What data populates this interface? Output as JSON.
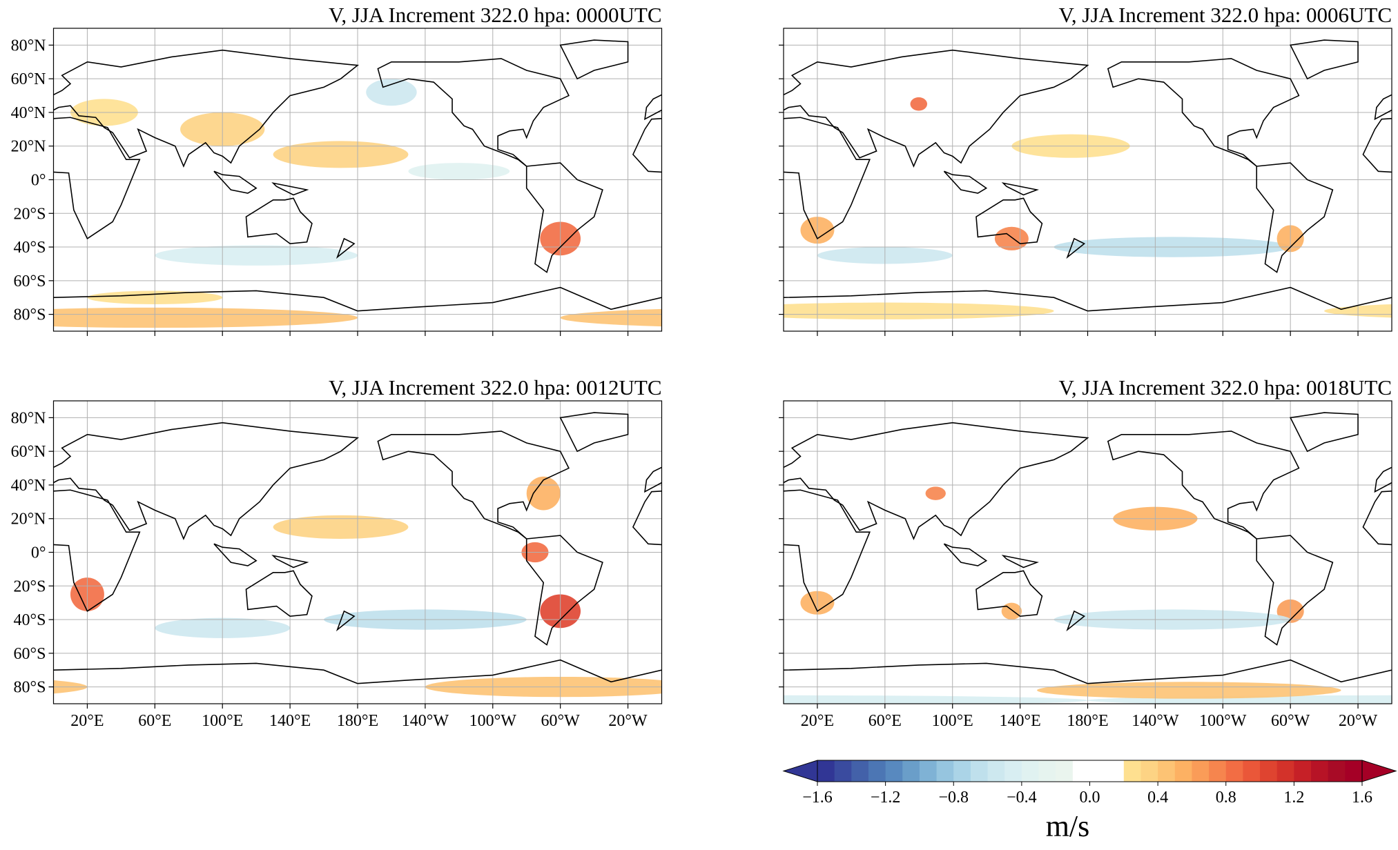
{
  "panels": [
    {
      "title": "V, JJA Increment 322.0 hpa: 0000UTC"
    },
    {
      "title": "V, JJA Increment 322.0 hpa: 0006UTC"
    },
    {
      "title": "V, JJA Increment 322.0 hpa: 0012UTC"
    },
    {
      "title": "V, JJA Increment 322.0 hpa: 0018UTC"
    }
  ],
  "xlim": [
    0,
    360
  ],
  "ylim": [
    -90,
    90
  ],
  "lat_ticks": [
    {
      "value": 80,
      "label": "80°N"
    },
    {
      "value": 60,
      "label": "60°N"
    },
    {
      "value": 40,
      "label": "40°N"
    },
    {
      "value": 20,
      "label": "20°N"
    },
    {
      "value": 0,
      "label": "0°"
    },
    {
      "value": -20,
      "label": "20°S"
    },
    {
      "value": -40,
      "label": "40°S"
    },
    {
      "value": -60,
      "label": "60°S"
    },
    {
      "value": -80,
      "label": "80°S"
    }
  ],
  "lon_ticks": [
    {
      "value": 20,
      "label": "20°E"
    },
    {
      "value": 60,
      "label": "60°E"
    },
    {
      "value": 100,
      "label": "100°E"
    },
    {
      "value": 140,
      "label": "140°E"
    },
    {
      "value": 180,
      "label": "180°E"
    },
    {
      "value": -140,
      "label": "140°W"
    },
    {
      "value": -100,
      "label": "100°W"
    },
    {
      "value": -60,
      "label": "60°W"
    },
    {
      "value": -20,
      "label": "20°W"
    }
  ],
  "colorbar": {
    "label": "m/s",
    "extend": "both",
    "levels": [
      -1.6,
      -1.5,
      -1.4,
      -1.3,
      -1.2,
      -1.1,
      -1.0,
      -0.9,
      -0.8,
      -0.7,
      -0.6,
      -0.5,
      -0.4,
      -0.3,
      -0.2,
      -0.1,
      0.0,
      0.1,
      0.2,
      0.3,
      0.4,
      0.5,
      0.6,
      0.7,
      0.8,
      0.9,
      1.0,
      1.1,
      1.2,
      1.3,
      1.4,
      1.5,
      1.6
    ],
    "colors": [
      "#313695",
      "#3a4b9f",
      "#4361a9",
      "#4c76b4",
      "#5889bf",
      "#6a9ec9",
      "#7fb2d5",
      "#96c5df",
      "#abd4e7",
      "#bfe0ec",
      "#cde8ef",
      "#d8eef2",
      "#e0f2f1",
      "#e6f4ef",
      "#eaf5ee",
      "#ffffff",
      "#ffffff",
      "#ffffff",
      "#fee090",
      "#fdd384",
      "#fdc374",
      "#fdb163",
      "#fa9c58",
      "#f6854e",
      "#f26d44",
      "#ea5739",
      "#df4430",
      "#d3322a",
      "#c62027",
      "#b71326",
      "#a80b26",
      "#a50026"
    ],
    "under_color": "#313695",
    "over_color": "#a50026",
    "ticks": [
      {
        "value": -1.6,
        "label": "−1.6"
      },
      {
        "value": -1.2,
        "label": "−1.2"
      },
      {
        "value": -0.8,
        "label": "−0.8"
      },
      {
        "value": -0.4,
        "label": "−0.4"
      },
      {
        "value": 0.0,
        "label": "0.0"
      },
      {
        "value": 0.4,
        "label": "0.4"
      },
      {
        "value": 0.8,
        "label": "0.8"
      },
      {
        "value": 1.2,
        "label": "1.2"
      },
      {
        "value": 1.6,
        "label": "1.6"
      }
    ]
  }
}
